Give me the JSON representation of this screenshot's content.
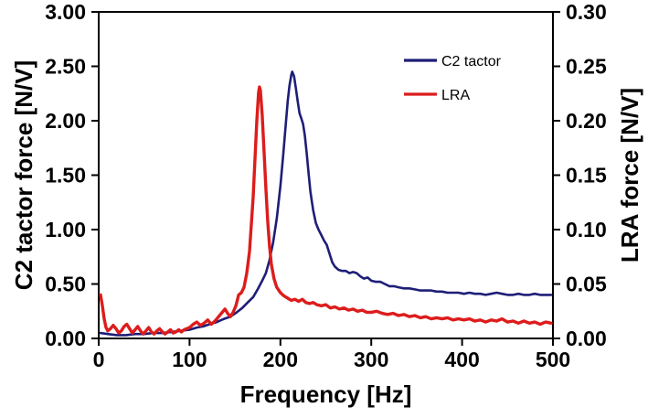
{
  "figure": {
    "background": "#ffffff",
    "axis_color": "#000000",
    "text_color": "#000000"
  },
  "chart_data": {
    "type": "line",
    "title": "",
    "xlabel": "Frequency [Hz]",
    "ylabel_left": "C2 tactor force [N/V]",
    "ylabel_right": "LRA force [N/V]",
    "xlim": [
      0,
      500
    ],
    "ylim_left": [
      0,
      3.0
    ],
    "ylim_right": [
      0,
      0.3
    ],
    "xticks": [
      0,
      100,
      200,
      300,
      400,
      500
    ],
    "xtick_labels": [
      "0",
      "100",
      "200",
      "300",
      "400",
      "500"
    ],
    "yticks_left": [
      0,
      0.5,
      1.0,
      1.5,
      2.0,
      2.5,
      3.0
    ],
    "ytick_labels_left": [
      "0.00",
      "0.50",
      "1.00",
      "1.50",
      "2.00",
      "2.50",
      "3.00"
    ],
    "yticks_right": [
      0,
      0.05,
      0.1,
      0.15,
      0.2,
      0.25,
      0.3
    ],
    "ytick_labels_right": [
      "0.00",
      "0.05",
      "0.10",
      "0.15",
      "0.20",
      "0.25",
      "0.30"
    ],
    "grid": false,
    "legend_position": "upper-right-inside",
    "legend": [
      {
        "label": "C2 tactor",
        "color": "#1e1e78"
      },
      {
        "label": "LRA",
        "color": "#dd1c1c"
      }
    ],
    "series": [
      {
        "name": "C2 tactor",
        "axis": "left",
        "color": "#1e1e78",
        "width": 2.6,
        "peak": {
          "x": 213,
          "y": 2.45
        },
        "points": [
          [
            2,
            0.05
          ],
          [
            10,
            0.04
          ],
          [
            20,
            0.03
          ],
          [
            30,
            0.03
          ],
          [
            40,
            0.04
          ],
          [
            50,
            0.04
          ],
          [
            60,
            0.05
          ],
          [
            70,
            0.05
          ],
          [
            80,
            0.06
          ],
          [
            90,
            0.07
          ],
          [
            100,
            0.08
          ],
          [
            108,
            0.1
          ],
          [
            115,
            0.11
          ],
          [
            122,
            0.13
          ],
          [
            130,
            0.15
          ],
          [
            138,
            0.18
          ],
          [
            145,
            0.2
          ],
          [
            152,
            0.24
          ],
          [
            158,
            0.28
          ],
          [
            164,
            0.33
          ],
          [
            170,
            0.38
          ],
          [
            175,
            0.45
          ],
          [
            180,
            0.53
          ],
          [
            184,
            0.6
          ],
          [
            188,
            0.72
          ],
          [
            192,
            0.88
          ],
          [
            196,
            1.1
          ],
          [
            200,
            1.4
          ],
          [
            203,
            1.68
          ],
          [
            206,
            1.98
          ],
          [
            208,
            2.18
          ],
          [
            210,
            2.32
          ],
          [
            212,
            2.42
          ],
          [
            213,
            2.45
          ],
          [
            215,
            2.41
          ],
          [
            217,
            2.3
          ],
          [
            219,
            2.18
          ],
          [
            221,
            2.07
          ],
          [
            223,
            2.02
          ],
          [
            225,
            1.97
          ],
          [
            227,
            1.86
          ],
          [
            229,
            1.7
          ],
          [
            231,
            1.52
          ],
          [
            233,
            1.35
          ],
          [
            236,
            1.18
          ],
          [
            239,
            1.06
          ],
          [
            242,
            1.0
          ],
          [
            245,
            0.95
          ],
          [
            248,
            0.9
          ],
          [
            251,
            0.86
          ],
          [
            254,
            0.78
          ],
          [
            257,
            0.7
          ],
          [
            260,
            0.66
          ],
          [
            264,
            0.63
          ],
          [
            268,
            0.62
          ],
          [
            272,
            0.62
          ],
          [
            276,
            0.6
          ],
          [
            280,
            0.61
          ],
          [
            284,
            0.6
          ],
          [
            288,
            0.57
          ],
          [
            292,
            0.55
          ],
          [
            296,
            0.56
          ],
          [
            300,
            0.53
          ],
          [
            305,
            0.52
          ],
          [
            310,
            0.52
          ],
          [
            315,
            0.5
          ],
          [
            320,
            0.48
          ],
          [
            325,
            0.48
          ],
          [
            330,
            0.47
          ],
          [
            336,
            0.46
          ],
          [
            342,
            0.46
          ],
          [
            348,
            0.45
          ],
          [
            354,
            0.44
          ],
          [
            360,
            0.44
          ],
          [
            366,
            0.44
          ],
          [
            372,
            0.43
          ],
          [
            378,
            0.43
          ],
          [
            384,
            0.42
          ],
          [
            390,
            0.42
          ],
          [
            396,
            0.42
          ],
          [
            402,
            0.41
          ],
          [
            408,
            0.42
          ],
          [
            414,
            0.41
          ],
          [
            420,
            0.41
          ],
          [
            426,
            0.4
          ],
          [
            432,
            0.41
          ],
          [
            438,
            0.42
          ],
          [
            444,
            0.41
          ],
          [
            450,
            0.4
          ],
          [
            456,
            0.4
          ],
          [
            462,
            0.41
          ],
          [
            468,
            0.4
          ],
          [
            474,
            0.4
          ],
          [
            480,
            0.41
          ],
          [
            486,
            0.4
          ],
          [
            492,
            0.4
          ],
          [
            498,
            0.4
          ]
        ]
      },
      {
        "name": "LRA",
        "axis": "right",
        "color": "#dd1c1c",
        "width": 3.4,
        "peak": {
          "x": 177,
          "y": 0.231
        },
        "points": [
          [
            2,
            0.04
          ],
          [
            4,
            0.03
          ],
          [
            6,
            0.018
          ],
          [
            8,
            0.01
          ],
          [
            10,
            0.007
          ],
          [
            13,
            0.009
          ],
          [
            16,
            0.012
          ],
          [
            19,
            0.009
          ],
          [
            22,
            0.005
          ],
          [
            25,
            0.007
          ],
          [
            28,
            0.011
          ],
          [
            31,
            0.013
          ],
          [
            34,
            0.009
          ],
          [
            37,
            0.005
          ],
          [
            40,
            0.008
          ],
          [
            43,
            0.011
          ],
          [
            46,
            0.007
          ],
          [
            49,
            0.004
          ],
          [
            52,
            0.007
          ],
          [
            55,
            0.01
          ],
          [
            58,
            0.006
          ],
          [
            61,
            0.004
          ],
          [
            64,
            0.007
          ],
          [
            67,
            0.009
          ],
          [
            70,
            0.006
          ],
          [
            73,
            0.004
          ],
          [
            76,
            0.006
          ],
          [
            79,
            0.008
          ],
          [
            82,
            0.005
          ],
          [
            85,
            0.006
          ],
          [
            88,
            0.008
          ],
          [
            91,
            0.006
          ],
          [
            94,
            0.008
          ],
          [
            97,
            0.009
          ],
          [
            100,
            0.01
          ],
          [
            104,
            0.013
          ],
          [
            108,
            0.015
          ],
          [
            112,
            0.012
          ],
          [
            116,
            0.014
          ],
          [
            120,
            0.017
          ],
          [
            124,
            0.013
          ],
          [
            128,
            0.016
          ],
          [
            132,
            0.02
          ],
          [
            136,
            0.024
          ],
          [
            139,
            0.027
          ],
          [
            142,
            0.023
          ],
          [
            145,
            0.02
          ],
          [
            148,
            0.024
          ],
          [
            151,
            0.03
          ],
          [
            154,
            0.04
          ],
          [
            157,
            0.042
          ],
          [
            160,
            0.047
          ],
          [
            163,
            0.06
          ],
          [
            166,
            0.08
          ],
          [
            168,
            0.105
          ],
          [
            170,
            0.13
          ],
          [
            172,
            0.165
          ],
          [
            174,
            0.2
          ],
          [
            176,
            0.226
          ],
          [
            177,
            0.231
          ],
          [
            178,
            0.228
          ],
          [
            180,
            0.205
          ],
          [
            182,
            0.172
          ],
          [
            184,
            0.138
          ],
          [
            186,
            0.108
          ],
          [
            188,
            0.085
          ],
          [
            190,
            0.068
          ],
          [
            193,
            0.055
          ],
          [
            196,
            0.047
          ],
          [
            200,
            0.042
          ],
          [
            204,
            0.039
          ],
          [
            208,
            0.037
          ],
          [
            212,
            0.035
          ],
          [
            216,
            0.036
          ],
          [
            220,
            0.034
          ],
          [
            224,
            0.036
          ],
          [
            228,
            0.033
          ],
          [
            232,
            0.032
          ],
          [
            236,
            0.033
          ],
          [
            240,
            0.031
          ],
          [
            245,
            0.03
          ],
          [
            250,
            0.031
          ],
          [
            255,
            0.028
          ],
          [
            260,
            0.029
          ],
          [
            265,
            0.027
          ],
          [
            270,
            0.028
          ],
          [
            275,
            0.026
          ],
          [
            280,
            0.027
          ],
          [
            285,
            0.025
          ],
          [
            290,
            0.026
          ],
          [
            295,
            0.024
          ],
          [
            300,
            0.024
          ],
          [
            306,
            0.025
          ],
          [
            312,
            0.023
          ],
          [
            318,
            0.022
          ],
          [
            324,
            0.023
          ],
          [
            330,
            0.021
          ],
          [
            336,
            0.022
          ],
          [
            342,
            0.02
          ],
          [
            348,
            0.021
          ],
          [
            354,
            0.019
          ],
          [
            360,
            0.02
          ],
          [
            366,
            0.018
          ],
          [
            372,
            0.019
          ],
          [
            378,
            0.018
          ],
          [
            384,
            0.019
          ],
          [
            390,
            0.017
          ],
          [
            396,
            0.018
          ],
          [
            402,
            0.017
          ],
          [
            408,
            0.018
          ],
          [
            414,
            0.016
          ],
          [
            420,
            0.017
          ],
          [
            426,
            0.015
          ],
          [
            432,
            0.017
          ],
          [
            438,
            0.016
          ],
          [
            444,
            0.018
          ],
          [
            450,
            0.015
          ],
          [
            456,
            0.016
          ],
          [
            462,
            0.014
          ],
          [
            468,
            0.016
          ],
          [
            474,
            0.014
          ],
          [
            480,
            0.015
          ],
          [
            486,
            0.013
          ],
          [
            492,
            0.015
          ],
          [
            498,
            0.014
          ]
        ]
      }
    ]
  }
}
